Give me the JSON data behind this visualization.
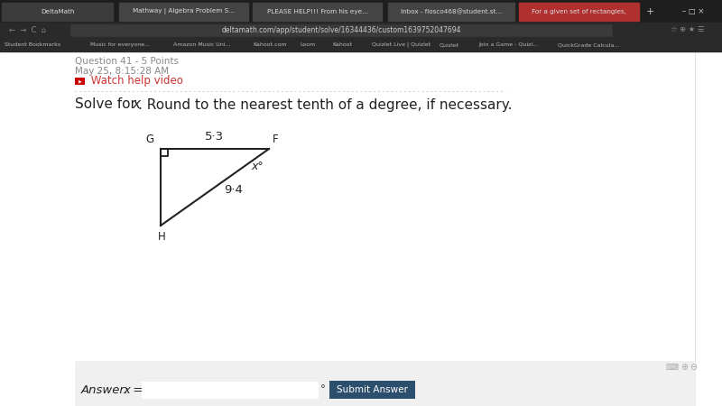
{
  "bg_color": "#ffffff",
  "browser_bar_color": "#2d2d2d",
  "page_bg": "#ffffff",
  "title_text": "Solve for x. Round to the nearest tenth of a degree, if necessary.",
  "title_color": "#222222",
  "title_fontsize": 11.0,
  "label_G": "G",
  "label_F": "F",
  "label_H": "H",
  "side_GF": "5·3",
  "side_FH": "9·4",
  "angle_label": "x°",
  "triangle_color": "#222222",
  "triangle_linewidth": 1.5,
  "answer_label": "Answer:  x =",
  "submit_text": "Submit Answer",
  "question_label": "Question 41 - 5 Points",
  "date_label": "May 25, 8:15:28 AM",
  "watch_text": " Watch help video",
  "tab_labels": [
    "DeltaMath",
    "Mathway | Algebra Problem S...",
    "PLEASE HELP!!! From his eye...",
    "Inbox - flosco468@student.st...",
    "For a given set of rectangles,"
  ],
  "tab_colors": [
    "#3c3c3c",
    "#444444",
    "#444444",
    "#444444",
    "#b03030"
  ],
  "tab_x": [
    2,
    132,
    280,
    430,
    575
  ],
  "tab_w": [
    123,
    143,
    143,
    140,
    133
  ],
  "bk_items": [
    "Student Bookmarks",
    "Music for everyone...",
    "Amazon Music Uni...",
    "Kahoot.com",
    "Loom",
    "Kahoot",
    "Quizlet Live | Quizlet",
    "Quizlet",
    "Join a Game - Quizi...",
    "QuickGrade Calcula..."
  ],
  "bk_x": [
    5,
    100,
    192,
    280,
    332,
    368,
    412,
    487,
    530,
    618
  ]
}
